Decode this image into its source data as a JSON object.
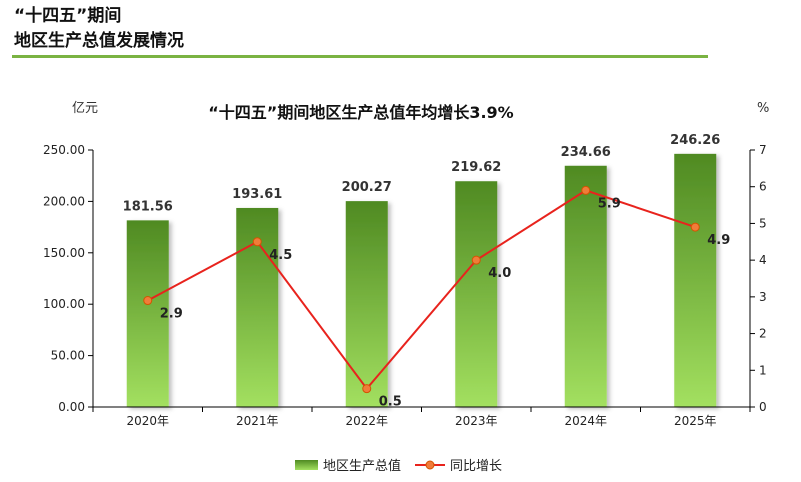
{
  "page": {
    "heading_line1": "“十四五”期间",
    "heading_line2": "地区生产总值发展情况"
  },
  "colors": {
    "accent_rule": "#7ab342",
    "bar_top": "#4f8a22",
    "bar_bottom": "#a3e060",
    "line": "#e8231d",
    "marker": "#f07c3a"
  },
  "chart_data": {
    "type": "bar+line",
    "title": "“十四五”期间地区生产总值年均增长3.9%",
    "ylabel_left": "亿元",
    "ylabel_right": "%",
    "categories": [
      "2020年",
      "2021年",
      "2022年",
      "2023年",
      "2024年",
      "2025年"
    ],
    "ylim_left": [
      0,
      250
    ],
    "yticks_left": [
      "0.00",
      "50.00",
      "100.00",
      "150.00",
      "200.00",
      "250.00"
    ],
    "ylim_right": [
      0,
      7
    ],
    "yticks_right": [
      "0",
      "1",
      "2",
      "3",
      "4",
      "5",
      "6",
      "7"
    ],
    "grid": false,
    "legend_position": "bottom",
    "series": [
      {
        "name": "地区生产总值",
        "type": "bar",
        "axis": "left",
        "values": [
          181.56,
          193.61,
          200.27,
          219.62,
          234.66,
          246.26
        ],
        "labels": [
          "181.56",
          "193.61",
          "200.27",
          "219.62",
          "234.66",
          "246.26"
        ]
      },
      {
        "name": "同比增长",
        "type": "line",
        "axis": "right",
        "values": [
          2.9,
          4.5,
          0.5,
          4.0,
          5.9,
          4.9
        ],
        "labels": [
          "2.9",
          "4.5",
          "0.5",
          "4.0",
          "5.9",
          "4.9"
        ]
      }
    ]
  }
}
